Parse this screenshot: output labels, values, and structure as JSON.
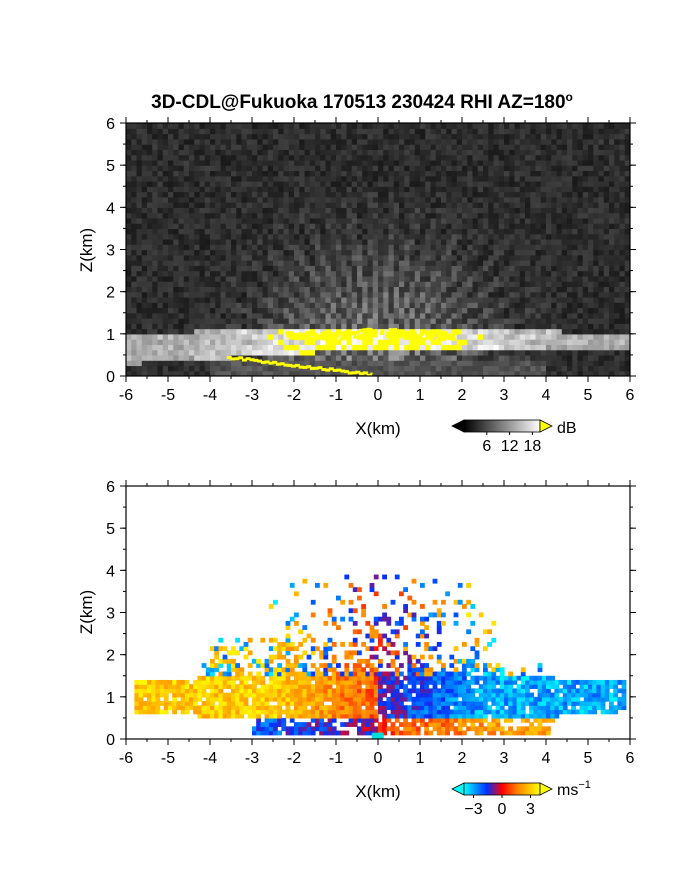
{
  "title": "3D-CDL@Fukuoka 170513 230424 RHI AZ=180",
  "title_degree": "o",
  "chart_data": [
    {
      "type": "heatmap",
      "name": "reflectivity",
      "title": "3D-CDL@Fukuoka 170513 230424 RHI AZ=180°",
      "xlabel": "X(km)",
      "ylabel": "Z(km)",
      "xlim": [
        -6,
        6
      ],
      "ylim": [
        0,
        6
      ],
      "x_ticks": [
        -6,
        -5,
        -4,
        -3,
        -2,
        -1,
        0,
        1,
        2,
        3,
        4,
        5,
        6
      ],
      "y_ticks": [
        0,
        1,
        2,
        3,
        4,
        5,
        6
      ],
      "colorbar": {
        "unit": "dB",
        "ticks": [
          6,
          12,
          18
        ],
        "range": [
          0,
          20
        ],
        "colors": [
          "#000000",
          "#ffffff"
        ],
        "over_color": "#ffff00"
      },
      "features": {
        "background_noise_db": 2,
        "bright_layer_height_km": 1.0,
        "saturated_band_x": [
          -2.2,
          1.8
        ],
        "radial_beams_top_km": 4.0
      },
      "grid": false
    },
    {
      "type": "heatmap",
      "name": "doppler_velocity",
      "xlabel": "X(km)",
      "ylabel": "Z(km)",
      "xlim": [
        -6,
        6
      ],
      "ylim": [
        0,
        6
      ],
      "x_ticks": [
        -6,
        -5,
        -4,
        -3,
        -2,
        -1,
        0,
        1,
        2,
        3,
        4,
        5,
        6
      ],
      "y_ticks": [
        0,
        1,
        2,
        3,
        4,
        5,
        6
      ],
      "colorbar": {
        "unit": "ms",
        "unit_exp": "−1",
        "ticks": [
          -3,
          0,
          3
        ],
        "tick_labels": [
          "−3",
          "0",
          "3"
        ],
        "range": [
          -4,
          4
        ],
        "colors": [
          "#00ffff",
          "#0030ff",
          "#ff0000",
          "#ff8000",
          "#ffff00"
        ]
      },
      "features": {
        "west_side_velocity_ms": 3,
        "east_side_velocity_ms": -3,
        "layer_height_km": 1.0,
        "max_echo_top_km": 3.9
      },
      "grid": false
    }
  ]
}
